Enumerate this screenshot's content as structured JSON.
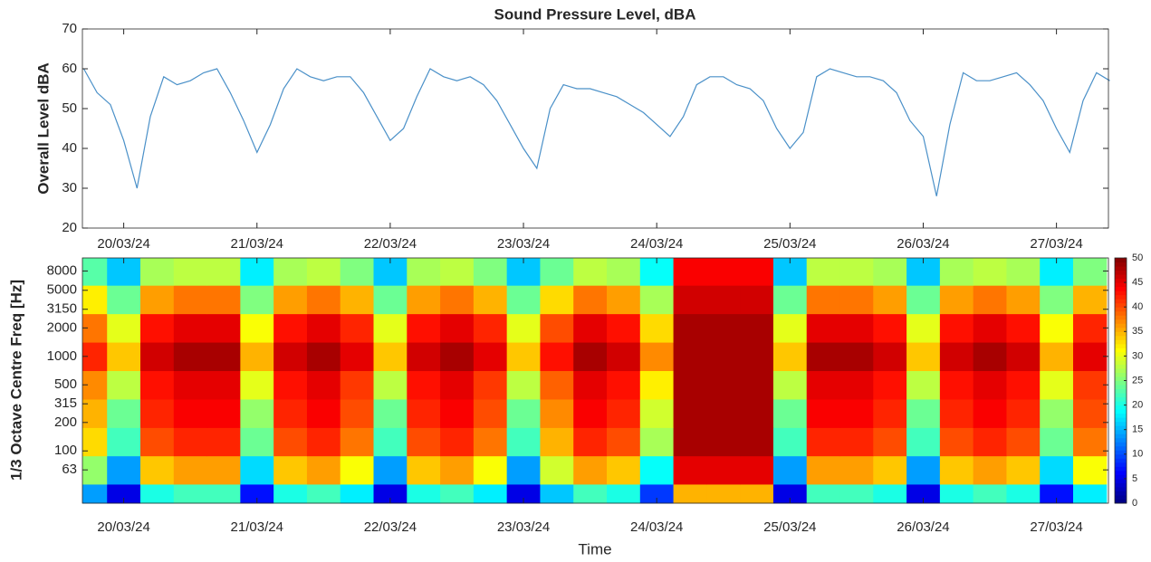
{
  "chart_data": [
    {
      "type": "line",
      "title": "Sound Pressure Level, dBA",
      "ylabel": "Overall Level dBA",
      "color": "#4a90c8",
      "x": [
        19.7,
        19.8,
        19.9,
        20.0,
        20.1,
        20.2,
        20.3,
        20.4,
        20.5,
        20.6,
        20.7,
        20.8,
        20.9,
        21.0,
        21.1,
        21.2,
        21.3,
        21.4,
        21.5,
        21.6,
        21.7,
        21.8,
        21.9,
        22.0,
        22.1,
        22.2,
        22.3,
        22.4,
        22.5,
        22.6,
        22.7,
        22.8,
        22.9,
        23.0,
        23.1,
        23.2,
        23.3,
        23.4,
        23.5,
        23.6,
        23.7,
        23.8,
        23.9,
        24.0,
        24.1,
        24.2,
        24.3,
        24.4,
        24.5,
        24.6,
        24.7,
        24.8,
        24.9,
        25.0,
        25.1,
        25.2,
        25.3,
        25.4,
        25.5,
        25.6,
        25.7,
        25.8,
        25.9,
        26.0,
        26.1,
        26.2,
        26.3,
        26.4,
        26.5,
        26.6,
        26.7,
        26.8,
        26.9,
        27.0,
        27.1,
        27.2,
        27.3,
        27.4
      ],
      "values": [
        60,
        54,
        51,
        42,
        30,
        48,
        58,
        56,
        57,
        59,
        60,
        54,
        47,
        39,
        46,
        55,
        60,
        58,
        57,
        58,
        58,
        54,
        48,
        42,
        45,
        53,
        60,
        58,
        57,
        58,
        56,
        52,
        46,
        40,
        35,
        50,
        56,
        55,
        55,
        54,
        53,
        51,
        49,
        46,
        43,
        48,
        56,
        58,
        58,
        56,
        55,
        52,
        45,
        40,
        44,
        58,
        60,
        59,
        58,
        58,
        57,
        54,
        47,
        43,
        28,
        46,
        59,
        57,
        57,
        58,
        59,
        56,
        52,
        45,
        39,
        52,
        59,
        57
      ],
      "xlim": [
        19.69,
        27.39
      ],
      "ylim": [
        20,
        70
      ],
      "yticks": [
        20,
        30,
        40,
        50,
        60,
        70
      ],
      "xticks": [
        {
          "value": 20,
          "label": "20/03/24"
        },
        {
          "value": 21,
          "label": "21/03/24"
        },
        {
          "value": 22,
          "label": "22/03/24"
        },
        {
          "value": 23,
          "label": "23/03/24"
        },
        {
          "value": 24,
          "label": "24/03/24"
        },
        {
          "value": 25,
          "label": "25/03/24"
        },
        {
          "value": 26,
          "label": "26/03/24"
        },
        {
          "value": 27,
          "label": "27/03/24"
        }
      ]
    },
    {
      "type": "heatmap",
      "ylabel": "1/3 Octave Centre Freq [Hz]",
      "xlabel": "Time",
      "log_y": true,
      "colormap": "jet",
      "x": [
        19.75,
        20.0,
        20.25,
        20.5,
        20.75,
        21.0,
        21.25,
        21.5,
        21.75,
        22.0,
        22.25,
        22.5,
        22.75,
        23.0,
        23.25,
        23.5,
        23.75,
        24.0,
        24.25,
        24.5,
        24.75,
        25.0,
        25.25,
        25.5,
        25.75,
        26.0,
        26.25,
        26.5,
        26.75,
        27.0,
        27.25
      ],
      "y": [
        31.5,
        63,
        125,
        250,
        500,
        1000,
        2000,
        4000,
        8000
      ],
      "z": [
        [
          14,
          5,
          20,
          22,
          22,
          7,
          20,
          22,
          18,
          5,
          20,
          22,
          18,
          5,
          16,
          22,
          20,
          9,
          35,
          35,
          35,
          5,
          22,
          22,
          20,
          5,
          20,
          22,
          20,
          7,
          18
        ],
        [
          26,
          14,
          34,
          36,
          36,
          17,
          34,
          36,
          31,
          14,
          34,
          36,
          31,
          14,
          29,
          36,
          34,
          19,
          45,
          45,
          45,
          14,
          36,
          36,
          34,
          14,
          34,
          36,
          34,
          17,
          31
        ],
        [
          33,
          22,
          40,
          42,
          42,
          24,
          40,
          42,
          38,
          22,
          40,
          42,
          38,
          22,
          35,
          42,
          40,
          27,
          48,
          48,
          48,
          22,
          42,
          42,
          40,
          22,
          40,
          42,
          40,
          24,
          38
        ],
        [
          35,
          24,
          42,
          44,
          44,
          26,
          42,
          44,
          40,
          24,
          42,
          44,
          40,
          24,
          37,
          44,
          42,
          29,
          48,
          48,
          48,
          24,
          44,
          44,
          42,
          24,
          42,
          44,
          42,
          26,
          40
        ],
        [
          37,
          28,
          43,
          45,
          45,
          30,
          43,
          45,
          41,
          28,
          43,
          45,
          41,
          28,
          39,
          45,
          43,
          32,
          48,
          48,
          48,
          28,
          45,
          45,
          43,
          28,
          43,
          45,
          43,
          30,
          41
        ],
        [
          42,
          34,
          46,
          48,
          48,
          35,
          46,
          48,
          45,
          34,
          46,
          48,
          45,
          34,
          43,
          48,
          46,
          37,
          48,
          48,
          48,
          34,
          48,
          48,
          46,
          34,
          46,
          48,
          46,
          35,
          45
        ],
        [
          38,
          30,
          43,
          45,
          45,
          31,
          43,
          45,
          42,
          30,
          43,
          45,
          42,
          30,
          40,
          45,
          43,
          33,
          48,
          48,
          48,
          30,
          45,
          45,
          43,
          30,
          43,
          45,
          43,
          31,
          42
        ],
        [
          32,
          24,
          36,
          38,
          38,
          25,
          36,
          38,
          35,
          24,
          36,
          38,
          35,
          24,
          33,
          38,
          36,
          27,
          46,
          46,
          46,
          24,
          38,
          38,
          36,
          24,
          36,
          38,
          36,
          25,
          35
        ],
        [
          23,
          16,
          27,
          28,
          28,
          18,
          27,
          28,
          25,
          16,
          27,
          28,
          25,
          16,
          24,
          28,
          27,
          19,
          44,
          44,
          44,
          16,
          28,
          28,
          27,
          16,
          27,
          28,
          27,
          18,
          25
        ]
      ],
      "xlim": [
        19.69,
        27.39
      ],
      "ylim": [
        28,
        11000
      ],
      "yticks": [
        63,
        100,
        200,
        315,
        500,
        1000,
        2000,
        3150,
        5000,
        8000
      ],
      "xticks": [
        {
          "value": 20,
          "label": "20/03/24"
        },
        {
          "value": 21,
          "label": "21/03/24"
        },
        {
          "value": 22,
          "label": "22/03/24"
        },
        {
          "value": 23,
          "label": "23/03/24"
        },
        {
          "value": 24,
          "label": "24/03/24"
        },
        {
          "value": 25,
          "label": "25/03/24"
        },
        {
          "value": 26,
          "label": "26/03/24"
        },
        {
          "value": 27,
          "label": "27/03/24"
        }
      ],
      "clim": [
        0,
        50
      ],
      "colorbar_ticks": [
        0,
        5,
        10,
        15,
        20,
        25,
        30,
        35,
        40,
        45,
        50
      ]
    }
  ]
}
